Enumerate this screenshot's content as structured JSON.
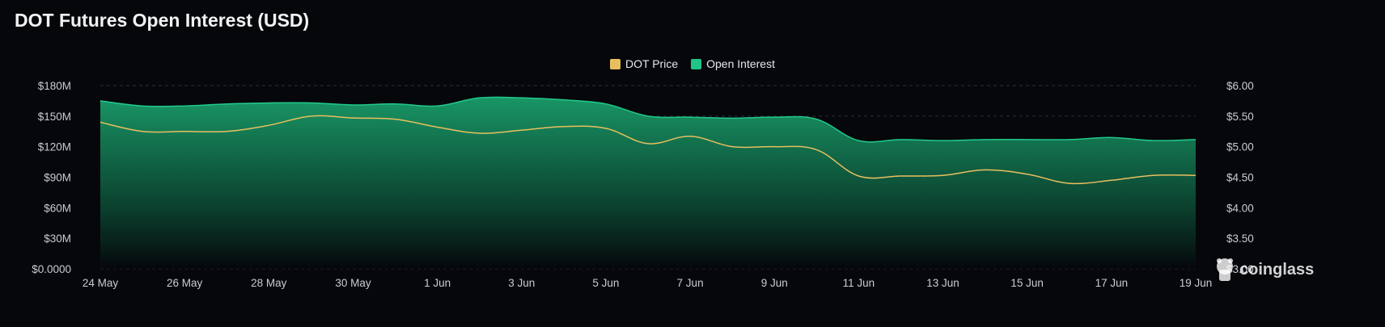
{
  "title": "DOT Futures Open Interest (USD)",
  "legend": [
    {
      "label": "DOT Price",
      "color": "#e8bf5e"
    },
    {
      "label": "Open Interest",
      "color": "#1fc486"
    }
  ],
  "watermark": "coinglass",
  "chart_data": {
    "type": "area",
    "title": "DOT Futures Open Interest (USD)",
    "x_ticks": [
      "24 May",
      "26 May",
      "28 May",
      "30 May",
      "1 Jun",
      "3 Jun",
      "5 Jun",
      "7 Jun",
      "9 Jun",
      "11 Jun",
      "13 Jun",
      "15 Jun",
      "17 Jun",
      "19 Jun"
    ],
    "y_left": {
      "ticks": [
        "$0.0000",
        "$30M",
        "$60M",
        "$90M",
        "$120M",
        "$150M",
        "$180M"
      ],
      "range": [
        0,
        180000000
      ]
    },
    "y_right": {
      "ticks": [
        "$3.00",
        "$3.50",
        "$4.00",
        "$4.50",
        "$5.00",
        "$5.50",
        "$6.00"
      ],
      "range": [
        3.0,
        6.0
      ]
    },
    "grid": true,
    "legend_position": "top-center",
    "x": [
      "24 May",
      "25 May",
      "26 May",
      "27 May",
      "28 May",
      "29 May",
      "30 May",
      "31 May",
      "1 Jun",
      "2 Jun",
      "3 Jun",
      "4 Jun",
      "5 Jun",
      "6 Jun",
      "7 Jun",
      "8 Jun",
      "9 Jun",
      "10 Jun",
      "11 Jun",
      "12 Jun",
      "13 Jun",
      "14 Jun",
      "15 Jun",
      "16 Jun",
      "17 Jun",
      "18 Jun",
      "19 Jun"
    ],
    "series": [
      {
        "name": "Open Interest",
        "axis": "left",
        "color": "#1fc486",
        "values": [
          165000000,
          160000000,
          160000000,
          162000000,
          163000000,
          163000000,
          161000000,
          162000000,
          160000000,
          168000000,
          168000000,
          166000000,
          162000000,
          150000000,
          149000000,
          148000000,
          149000000,
          147000000,
          126000000,
          127000000,
          126000000,
          127000000,
          127000000,
          127000000,
          129000000,
          126000000,
          127000000
        ]
      },
      {
        "name": "DOT Price",
        "axis": "right",
        "color": "#e8bf5e",
        "values": [
          5.4,
          5.25,
          5.25,
          5.25,
          5.35,
          5.5,
          5.47,
          5.45,
          5.32,
          5.22,
          5.27,
          5.33,
          5.3,
          5.05,
          5.17,
          5.0,
          5.0,
          4.95,
          4.52,
          4.52,
          4.53,
          4.62,
          4.55,
          4.4,
          4.45,
          4.53,
          4.53
        ]
      }
    ]
  }
}
